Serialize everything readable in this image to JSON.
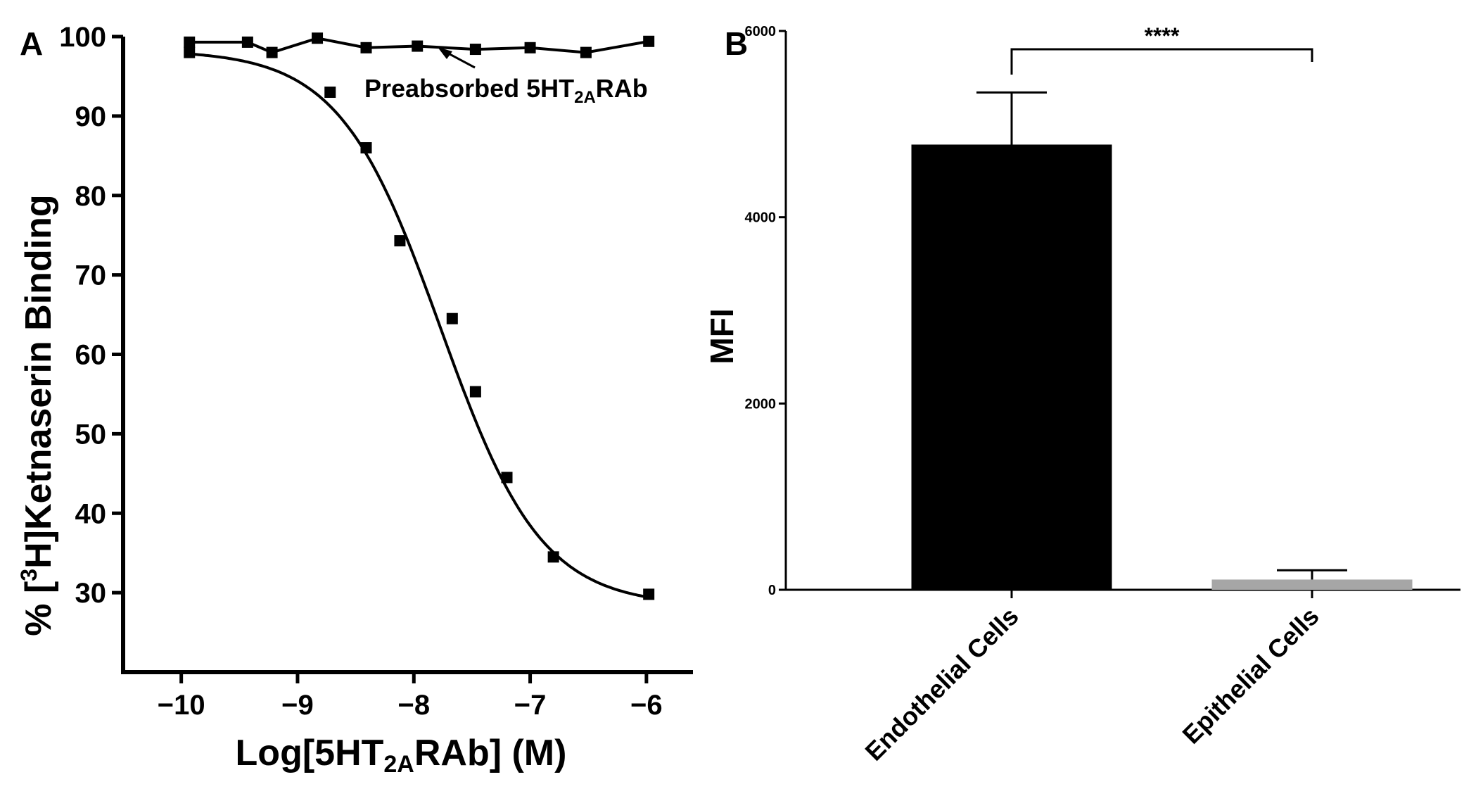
{
  "chart_data": [
    {
      "panel": "A",
      "type": "scatter",
      "xlabel": {
        "pre": "Log[5HT",
        "sub": "2A",
        "post": "RAb] (M)"
      },
      "ylabel": {
        "pre": "% [",
        "sup": "3",
        "post": "H]Ketnaserin Binding"
      },
      "xlim": [
        -10.5,
        -5.6
      ],
      "ylim": [
        20,
        100
      ],
      "xticks": [
        -10,
        -9,
        -8,
        -7,
        -6
      ],
      "xtick_labels": [
        "−10",
        "−9",
        "−8",
        "−7",
        "−6"
      ],
      "yticks": [
        30,
        40,
        50,
        60,
        70,
        80,
        90,
        100
      ],
      "ytick_labels": [
        "30",
        "40",
        "50",
        "60",
        "70",
        "80",
        "90",
        "100"
      ],
      "series": [
        {
          "points": [
            [
              -9.93,
              98.0
            ],
            [
              -8.72,
              93.0
            ],
            [
              -8.41,
              86.0
            ],
            [
              -8.12,
              74.3
            ],
            [
              -7.67,
              64.5
            ],
            [
              -7.47,
              55.3
            ],
            [
              -7.2,
              44.5
            ],
            [
              -6.8,
              34.5
            ],
            [
              -5.98,
              29.8
            ]
          ],
          "fit": {
            "top": 98.3,
            "bottom": 28.3,
            "logIC50": -7.77,
            "hill": 1.0
          }
        },
        {
          "points": [
            [
              -9.93,
              99.3
            ],
            [
              -9.43,
              99.3
            ],
            [
              -9.22,
              98.0
            ],
            [
              -8.83,
              99.8
            ],
            [
              -8.41,
              98.6
            ],
            [
              -7.97,
              98.8
            ],
            [
              -7.47,
              98.4
            ],
            [
              -7.0,
              98.6
            ],
            [
              -6.52,
              98.0
            ],
            [
              -5.98,
              99.4
            ]
          ]
        }
      ],
      "annotations": [
        {
          "text_pre": "Preabsorbed 5HT",
          "text_sub": "2A",
          "text_post": "RAb"
        }
      ]
    },
    {
      "panel": "B",
      "type": "bar",
      "categories": [
        "Endothelial Cells",
        "Epithelial Cells"
      ],
      "values": [
        4780,
        110
      ],
      "errors": [
        560,
        100
      ],
      "colors": [
        "#000000",
        "#a6a6a6"
      ],
      "ylabel": "MFI",
      "ylim": [
        0,
        6000
      ],
      "yticks": [
        0,
        2000,
        4000,
        6000
      ],
      "ytick_labels": [
        "0",
        "2000",
        "4000",
        "6000"
      ],
      "significance": "****"
    }
  ]
}
